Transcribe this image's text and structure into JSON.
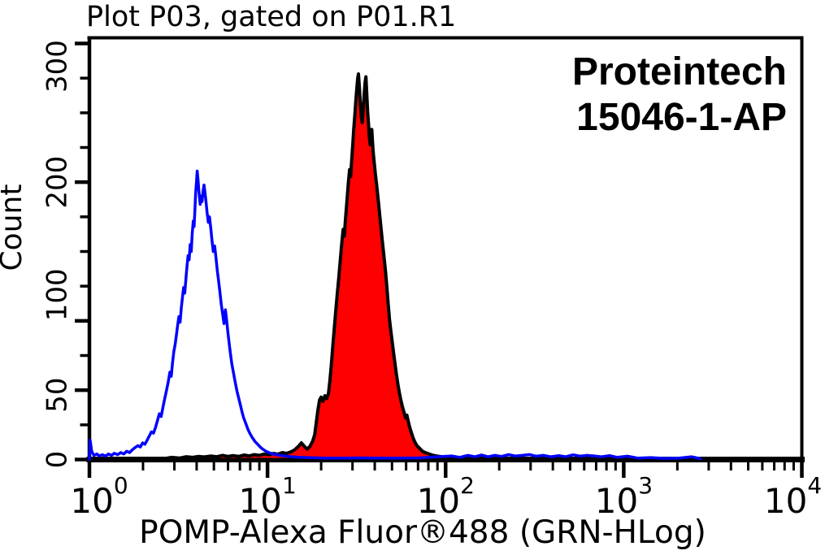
{
  "title": "Plot P03, gated on P01.R1",
  "watermark": {
    "line1": "Proteintech",
    "line2": "15046-1-AP"
  },
  "colors": {
    "background": "#ffffff",
    "axis": "#000000",
    "blue_series": "#0000ff",
    "red_series_fill": "#ff0000",
    "red_series_outline": "#000000"
  },
  "chart_data": {
    "type": "area",
    "subtype": "flow-cytometry-overlay-histogram",
    "title": "Plot P03, gated on P01.R1",
    "xlabel": "POMP-Alexa Fluor®488 (GRN-HLog)",
    "ylabel": "Count",
    "x_scale": "log10",
    "xlim": [
      1,
      10000
    ],
    "ylim": [
      0,
      300
    ],
    "grid": false,
    "legend": "none",
    "x_major_ticks": [
      {
        "value": 1,
        "base": "10",
        "exp": "0"
      },
      {
        "value": 10,
        "base": "10",
        "exp": "1"
      },
      {
        "value": 100,
        "base": "10",
        "exp": "2"
      },
      {
        "value": 1000,
        "base": "10",
        "exp": "3"
      },
      {
        "value": 10000,
        "base": "10",
        "exp": "4"
      }
    ],
    "x_minor_tick_multiples": [
      2,
      3,
      4,
      5,
      6,
      7,
      8,
      9
    ],
    "y_major_ticks": [
      {
        "value": 0,
        "label": "0"
      },
      {
        "value": 50,
        "label": "50"
      },
      {
        "value": 100,
        "label": "100"
      },
      {
        "value": 200,
        "label": "200"
      },
      {
        "value": 300,
        "label": "300"
      }
    ],
    "y_minor_ticks": [
      25,
      75,
      125,
      150,
      175,
      225,
      250,
      275
    ],
    "series": [
      {
        "name": "red-filled-histogram",
        "stroke": "#000000",
        "fill": "#ff0000",
        "stroke_width": 4,
        "peak_x": 32.4,
        "peak_count": 278,
        "points": [
          [
            2.6,
            0.5
          ],
          [
            2.9,
            1.5
          ],
          [
            3.2,
            1
          ],
          [
            3.5,
            2
          ],
          [
            3.8,
            1.5
          ],
          [
            4.1,
            2.2
          ],
          [
            4.4,
            1.8
          ],
          [
            4.8,
            2.5
          ],
          [
            5.2,
            2
          ],
          [
            5.6,
            3
          ],
          [
            6.0,
            2.2
          ],
          [
            6.4,
            2.8
          ],
          [
            6.9,
            2.2
          ],
          [
            7.4,
            3.2
          ],
          [
            7.9,
            2.6
          ],
          [
            8.4,
            3.5
          ],
          [
            9.0,
            3
          ],
          [
            9.6,
            4
          ],
          [
            10.2,
            3.4
          ],
          [
            10.8,
            4.4
          ],
          [
            11.4,
            3.8
          ],
          [
            12.1,
            5
          ],
          [
            12.8,
            4.4
          ],
          [
            13.5,
            5.5
          ],
          [
            14.2,
            7
          ],
          [
            14.9,
            9.5
          ],
          [
            15.5,
            12
          ],
          [
            16.1,
            9.5
          ],
          [
            16.7,
            7.5
          ],
          [
            17.3,
            9.5
          ],
          [
            17.9,
            13
          ],
          [
            18.4,
            18
          ],
          [
            18.8,
            27
          ],
          [
            19.2,
            36
          ],
          [
            19.6,
            43
          ],
          [
            20.0,
            45
          ],
          [
            20.5,
            42
          ],
          [
            21.0,
            46
          ],
          [
            21.5,
            44
          ],
          [
            22.0,
            48
          ],
          [
            22.4,
            57
          ],
          [
            22.8,
            68
          ],
          [
            23.2,
            80
          ],
          [
            23.7,
            94
          ],
          [
            24.2,
            108
          ],
          [
            24.7,
            121
          ],
          [
            25.2,
            133
          ],
          [
            25.7,
            146
          ],
          [
            26.2,
            158
          ],
          [
            26.6,
            166
          ],
          [
            27.0,
            161
          ],
          [
            27.4,
            173
          ],
          [
            27.9,
            186
          ],
          [
            28.4,
            199
          ],
          [
            28.9,
            209
          ],
          [
            29.3,
            204
          ],
          [
            29.7,
            216
          ],
          [
            30.1,
            227
          ],
          [
            30.5,
            238
          ],
          [
            30.9,
            248
          ],
          [
            31.3,
            258
          ],
          [
            31.7,
            267
          ],
          [
            32.1,
            275
          ],
          [
            32.4,
            278
          ],
          [
            32.8,
            268
          ],
          [
            33.2,
            257
          ],
          [
            33.6,
            247
          ],
          [
            34.0,
            243
          ],
          [
            34.5,
            253
          ],
          [
            34.9,
            264
          ],
          [
            35.3,
            272
          ],
          [
            35.7,
            276
          ],
          [
            36.1,
            263
          ],
          [
            36.5,
            251
          ],
          [
            36.9,
            242
          ],
          [
            37.3,
            233
          ],
          [
            37.7,
            227
          ],
          [
            38.1,
            233
          ],
          [
            38.5,
            238
          ],
          [
            38.9,
            228
          ],
          [
            39.3,
            220
          ],
          [
            39.8,
            213
          ],
          [
            40.3,
            206
          ],
          [
            41.0,
            198
          ],
          [
            42.0,
            185
          ],
          [
            43.0,
            172
          ],
          [
            44.0,
            159
          ],
          [
            45.0,
            147
          ],
          [
            46.0,
            135
          ],
          [
            46.8,
            124
          ],
          [
            47.6,
            112
          ],
          [
            48.4,
            101
          ],
          [
            49.2,
            93
          ],
          [
            50.0,
            86
          ],
          [
            51.0,
            77
          ],
          [
            52.0,
            69
          ],
          [
            53.0,
            61
          ],
          [
            54.0,
            54
          ],
          [
            55.0,
            48
          ],
          [
            56.0,
            43
          ],
          [
            57.2,
            38
          ],
          [
            58.4,
            34
          ],
          [
            59.6,
            30
          ],
          [
            60.6,
            32
          ],
          [
            61.6,
            28
          ],
          [
            62.6,
            24
          ],
          [
            64.0,
            20
          ],
          [
            65.5,
            16
          ],
          [
            67.0,
            13
          ],
          [
            69.0,
            10
          ],
          [
            71.5,
            8
          ],
          [
            74.0,
            6
          ],
          [
            77.0,
            5
          ],
          [
            81.0,
            4
          ],
          [
            85.0,
            3
          ],
          [
            90.0,
            2.4
          ],
          [
            96.0,
            2
          ],
          [
            103.0,
            1.6
          ],
          [
            110.0,
            1.2
          ],
          [
            118.0,
            0.8
          ],
          [
            126.0,
            0.4
          ]
        ]
      },
      {
        "name": "blue-open-histogram",
        "stroke": "#0000ff",
        "fill": "none",
        "stroke_width": 3.5,
        "peak_x": 4.03,
        "peak_count": 208,
        "points": [
          [
            1.0,
            0
          ],
          [
            1.01,
            14
          ],
          [
            1.03,
            6
          ],
          [
            1.06,
            3
          ],
          [
            1.1,
            4
          ],
          [
            1.14,
            2.5
          ],
          [
            1.18,
            3.5
          ],
          [
            1.23,
            2.5
          ],
          [
            1.28,
            4
          ],
          [
            1.33,
            3
          ],
          [
            1.38,
            4.5
          ],
          [
            1.44,
            3.5
          ],
          [
            1.5,
            5
          ],
          [
            1.56,
            4
          ],
          [
            1.62,
            6
          ],
          [
            1.68,
            5
          ],
          [
            1.74,
            7
          ],
          [
            1.8,
            8.5
          ],
          [
            1.87,
            10
          ],
          [
            1.93,
            9
          ],
          [
            1.99,
            12
          ],
          [
            2.05,
            11
          ],
          [
            2.11,
            14
          ],
          [
            2.17,
            17
          ],
          [
            2.23,
            20
          ],
          [
            2.29,
            19
          ],
          [
            2.35,
            23
          ],
          [
            2.41,
            28
          ],
          [
            2.47,
            33
          ],
          [
            2.53,
            31
          ],
          [
            2.59,
            38
          ],
          [
            2.65,
            44
          ],
          [
            2.71,
            50
          ],
          [
            2.77,
            56
          ],
          [
            2.83,
            63
          ],
          [
            2.88,
            60
          ],
          [
            2.93,
            70
          ],
          [
            2.98,
            78
          ],
          [
            3.03,
            83
          ],
          [
            3.08,
            90
          ],
          [
            3.13,
            97
          ],
          [
            3.18,
            103
          ],
          [
            3.23,
            99
          ],
          [
            3.28,
            109
          ],
          [
            3.33,
            117
          ],
          [
            3.38,
            124
          ],
          [
            3.43,
            120
          ],
          [
            3.48,
            130
          ],
          [
            3.53,
            139
          ],
          [
            3.58,
            147
          ],
          [
            3.63,
            144
          ],
          [
            3.68,
            155
          ],
          [
            3.73,
            150
          ],
          [
            3.78,
            163
          ],
          [
            3.83,
            172
          ],
          [
            3.87,
            168
          ],
          [
            3.91,
            180
          ],
          [
            3.95,
            192
          ],
          [
            3.99,
            200
          ],
          [
            4.03,
            208
          ],
          [
            4.07,
            202
          ],
          [
            4.11,
            195
          ],
          [
            4.15,
            189
          ],
          [
            4.19,
            184
          ],
          [
            4.24,
            190
          ],
          [
            4.29,
            186
          ],
          [
            4.34,
            193
          ],
          [
            4.4,
            198
          ],
          [
            4.46,
            192
          ],
          [
            4.52,
            185
          ],
          [
            4.58,
            178
          ],
          [
            4.65,
            171
          ],
          [
            4.72,
            175
          ],
          [
            4.8,
            167
          ],
          [
            4.88,
            158
          ],
          [
            4.96,
            150
          ],
          [
            5.05,
            154
          ],
          [
            5.14,
            145
          ],
          [
            5.23,
            136
          ],
          [
            5.32,
            128
          ],
          [
            5.41,
            120
          ],
          [
            5.5,
            112
          ],
          [
            5.6,
            105
          ],
          [
            5.7,
            98
          ],
          [
            5.8,
            108
          ],
          [
            5.9,
            100
          ],
          [
            6.0,
            91
          ],
          [
            6.1,
            83
          ],
          [
            6.2,
            76
          ],
          [
            6.3,
            69
          ],
          [
            6.45,
            62
          ],
          [
            6.6,
            55
          ],
          [
            6.75,
            49
          ],
          [
            6.9,
            44
          ],
          [
            7.05,
            39
          ],
          [
            7.2,
            34
          ],
          [
            7.35,
            30
          ],
          [
            7.55,
            26
          ],
          [
            7.75,
            22
          ],
          [
            7.95,
            19
          ],
          [
            8.2,
            16
          ],
          [
            8.5,
            13
          ],
          [
            8.8,
            11
          ],
          [
            9.1,
            9
          ],
          [
            9.4,
            7.5
          ],
          [
            9.8,
            6
          ],
          [
            10.2,
            5
          ],
          [
            10.7,
            4
          ],
          [
            11.2,
            3.5
          ],
          [
            11.8,
            3
          ],
          [
            12.6,
            2.5
          ],
          [
            13.6,
            2
          ],
          [
            15,
            1.6
          ],
          [
            17.5,
            1.3
          ],
          [
            21,
            1
          ],
          [
            26,
            1
          ],
          [
            33,
            1.2
          ],
          [
            42,
            1
          ],
          [
            55,
            1
          ],
          [
            72,
            1.2
          ],
          [
            90,
            2
          ],
          [
            108,
            2.6
          ],
          [
            120,
            1.6
          ],
          [
            133,
            3
          ],
          [
            146,
            2
          ],
          [
            159,
            3.2
          ],
          [
            173,
            2
          ],
          [
            189,
            3
          ],
          [
            206,
            2.2
          ],
          [
            226,
            3.5
          ],
          [
            247,
            2.5
          ],
          [
            270,
            3
          ],
          [
            296,
            3.6
          ],
          [
            323,
            2.4
          ],
          [
            353,
            3
          ],
          [
            388,
            2
          ],
          [
            432,
            2.8
          ],
          [
            473,
            2
          ],
          [
            520,
            3.4
          ],
          [
            570,
            2.4
          ],
          [
            622,
            3
          ],
          [
            682,
            2.6
          ],
          [
            750,
            2
          ],
          [
            832,
            2.8
          ],
          [
            920,
            1.6
          ],
          [
            1050,
            2.4
          ],
          [
            1200,
            1
          ],
          [
            1420,
            1.4
          ],
          [
            1700,
            0.8
          ],
          [
            2050,
            1
          ],
          [
            2400,
            2
          ],
          [
            2700,
            0.6
          ]
        ]
      }
    ]
  }
}
